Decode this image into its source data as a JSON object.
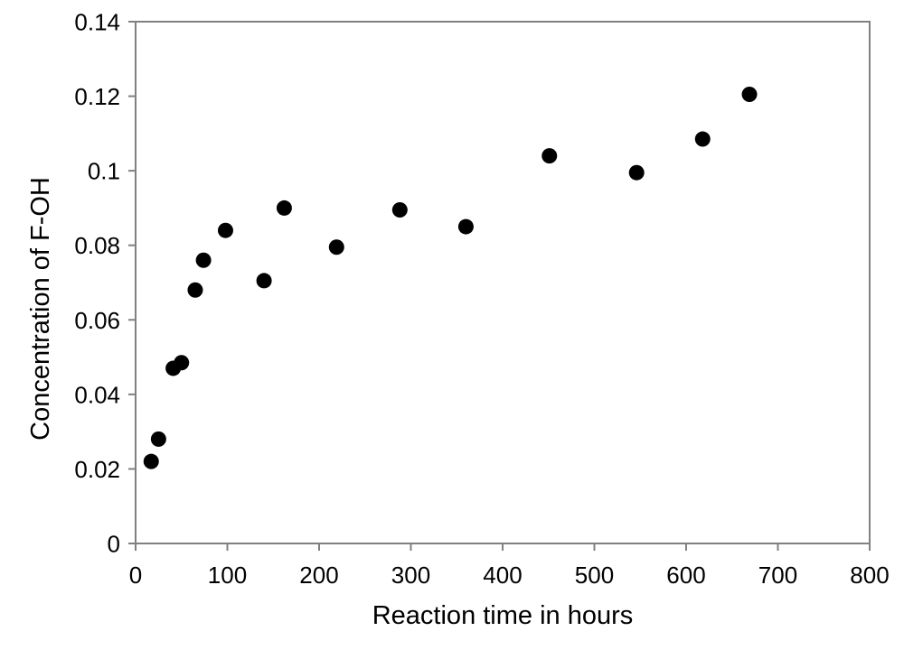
{
  "chart_data": {
    "type": "scatter",
    "title": "",
    "xlabel": "Reaction time in hours",
    "ylabel": "Concentration of F-OH",
    "xlim": [
      0,
      800
    ],
    "ylim": [
      0,
      0.14
    ],
    "x_ticks": [
      0,
      100,
      200,
      300,
      400,
      500,
      600,
      700,
      800
    ],
    "x_tick_labels": [
      "0",
      "100",
      "200",
      "300",
      "400",
      "500",
      "600",
      "700",
      "800"
    ],
    "y_ticks": [
      0,
      0.02,
      0.04,
      0.06,
      0.08,
      0.1,
      0.12,
      0.14
    ],
    "y_tick_labels": [
      "0",
      "0.02",
      "0.04",
      "0.06",
      "0.08",
      "0.1",
      "0.12",
      "0.14"
    ],
    "grid": false,
    "legend_position": "none",
    "frame": "full-box",
    "frame_color": "#808080",
    "marker": {
      "shape": "circle",
      "color": "#000000",
      "radius_px": 8.5
    },
    "points": [
      {
        "x": 17,
        "y": 0.022
      },
      {
        "x": 25,
        "y": 0.028
      },
      {
        "x": 41,
        "y": 0.047
      },
      {
        "x": 50,
        "y": 0.0485
      },
      {
        "x": 65,
        "y": 0.068
      },
      {
        "x": 74,
        "y": 0.076
      },
      {
        "x": 98,
        "y": 0.084
      },
      {
        "x": 140,
        "y": 0.0705
      },
      {
        "x": 162,
        "y": 0.09
      },
      {
        "x": 219,
        "y": 0.0795
      },
      {
        "x": 288,
        "y": 0.0895
      },
      {
        "x": 360,
        "y": 0.085
      },
      {
        "x": 451,
        "y": 0.104
      },
      {
        "x": 546,
        "y": 0.0995
      },
      {
        "x": 618,
        "y": 0.1085
      },
      {
        "x": 669,
        "y": 0.1205
      }
    ]
  }
}
